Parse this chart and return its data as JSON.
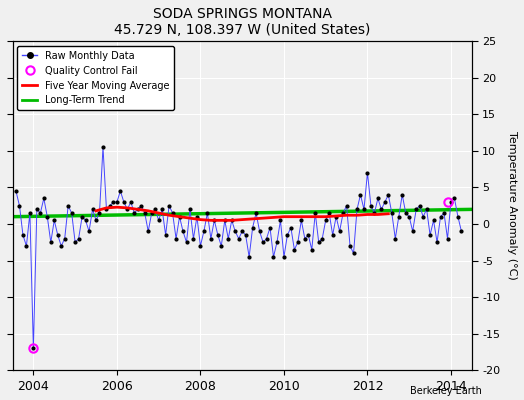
{
  "title": "SODA SPRINGS MONTANA",
  "subtitle": "45.729 N, 108.397 W (United States)",
  "ylabel_right": "Temperature Anomaly (°C)",
  "watermark": "Berkeley Earth",
  "ylim": [
    -20,
    25
  ],
  "xlim": [
    2003.5,
    2014.5
  ],
  "yticks": [
    -20,
    -15,
    -10,
    -5,
    0,
    5,
    10,
    15,
    20,
    25
  ],
  "xticks": [
    2004,
    2006,
    2008,
    2010,
    2012,
    2014
  ],
  "bg_color": "#f0f0f0",
  "plot_bg_color": "#f0f0f0",
  "raw_data": {
    "times": [
      2003.583,
      2003.667,
      2003.75,
      2003.833,
      2003.917,
      2004.0,
      2004.083,
      2004.167,
      2004.25,
      2004.333,
      2004.417,
      2004.5,
      2004.583,
      2004.667,
      2004.75,
      2004.833,
      2004.917,
      2005.0,
      2005.083,
      2005.167,
      2005.25,
      2005.333,
      2005.417,
      2005.5,
      2005.583,
      2005.667,
      2005.75,
      2005.833,
      2005.917,
      2006.0,
      2006.083,
      2006.167,
      2006.25,
      2006.333,
      2006.417,
      2006.5,
      2006.583,
      2006.667,
      2006.75,
      2006.833,
      2006.917,
      2007.0,
      2007.083,
      2007.167,
      2007.25,
      2007.333,
      2007.417,
      2007.5,
      2007.583,
      2007.667,
      2007.75,
      2007.833,
      2007.917,
      2008.0,
      2008.083,
      2008.167,
      2008.25,
      2008.333,
      2008.417,
      2008.5,
      2008.583,
      2008.667,
      2008.75,
      2008.833,
      2008.917,
      2009.0,
      2009.083,
      2009.167,
      2009.25,
      2009.333,
      2009.417,
      2009.5,
      2009.583,
      2009.667,
      2009.75,
      2009.833,
      2009.917,
      2010.0,
      2010.083,
      2010.167,
      2010.25,
      2010.333,
      2010.417,
      2010.5,
      2010.583,
      2010.667,
      2010.75,
      2010.833,
      2010.917,
      2011.0,
      2011.083,
      2011.167,
      2011.25,
      2011.333,
      2011.417,
      2011.5,
      2011.583,
      2011.667,
      2011.75,
      2011.833,
      2011.917,
      2012.0,
      2012.083,
      2012.167,
      2012.25,
      2012.333,
      2012.417,
      2012.5,
      2012.583,
      2012.667,
      2012.75,
      2012.833,
      2012.917,
      2013.0,
      2013.083,
      2013.167,
      2013.25,
      2013.333,
      2013.417,
      2013.5,
      2013.583,
      2013.667,
      2013.75,
      2013.833,
      2013.917,
      2014.0,
      2014.083,
      2014.167,
      2014.25
    ],
    "values": [
      4.5,
      2.5,
      -1.5,
      -3.0,
      1.5,
      -17.0,
      2.0,
      1.5,
      3.5,
      1.0,
      -2.5,
      0.5,
      -1.5,
      -3.0,
      -2.0,
      2.5,
      1.5,
      -2.5,
      -2.0,
      1.0,
      0.5,
      -1.0,
      2.0,
      0.5,
      1.5,
      10.5,
      2.0,
      2.5,
      3.0,
      3.0,
      4.5,
      3.0,
      2.0,
      3.0,
      1.5,
      2.0,
      2.5,
      1.5,
      -1.0,
      1.5,
      2.0,
      0.5,
      2.0,
      -1.5,
      2.5,
      1.5,
      -2.0,
      1.0,
      -1.0,
      -2.5,
      2.0,
      -2.0,
      1.0,
      -3.0,
      -1.0,
      1.5,
      -2.0,
      0.5,
      -1.5,
      -3.0,
      0.5,
      -2.0,
      0.5,
      -1.0,
      -2.0,
      -1.0,
      -1.5,
      -4.5,
      -0.5,
      1.5,
      -1.0,
      -2.5,
      -2.0,
      -0.5,
      -4.5,
      -2.5,
      0.5,
      -4.5,
      -1.5,
      -0.5,
      -3.5,
      -2.5,
      0.5,
      -2.0,
      -1.5,
      -3.5,
      1.5,
      -2.5,
      -2.0,
      0.5,
      1.5,
      -1.5,
      1.0,
      -1.0,
      1.5,
      2.5,
      -3.0,
      -4.0,
      2.0,
      4.0,
      2.0,
      7.0,
      2.5,
      1.5,
      3.5,
      2.0,
      3.0,
      4.0,
      1.5,
      -2.0,
      1.0,
      4.0,
      1.5,
      1.0,
      -1.0,
      2.0,
      2.5,
      1.0,
      2.0,
      -1.5,
      0.5,
      -2.5,
      1.0,
      1.5,
      -2.0,
      3.0,
      3.5,
      1.0,
      -1.0
    ]
  },
  "qc_fail_times": [
    2004.0,
    2013.917
  ],
  "qc_fail_values": [
    -17.0,
    3.0
  ],
  "moving_avg": {
    "times": [
      2005.5,
      2005.75,
      2006.0,
      2006.25,
      2006.5,
      2006.75,
      2007.0,
      2007.25,
      2007.5,
      2007.75,
      2008.0,
      2008.25,
      2008.5,
      2008.75,
      2009.0,
      2009.25,
      2009.5,
      2009.75,
      2010.0,
      2010.25,
      2010.5,
      2010.75,
      2011.0,
      2011.25,
      2011.5,
      2011.75,
      2012.0,
      2012.25,
      2012.5
    ],
    "values": [
      1.8,
      2.2,
      2.3,
      2.2,
      2.0,
      1.8,
      1.5,
      1.2,
      1.0,
      0.8,
      0.6,
      0.5,
      0.5,
      0.5,
      0.6,
      0.7,
      0.8,
      0.9,
      1.0,
      1.0,
      1.0,
      1.0,
      1.0,
      1.1,
      1.2,
      1.2,
      1.3,
      1.3,
      1.4
    ]
  },
  "long_term_trend": {
    "times": [
      2003.5,
      2014.5
    ],
    "values": [
      1.0,
      2.0
    ]
  },
  "line_color": "#4444ff",
  "dot_color": "#000000",
  "qc_color": "#ff00ff",
  "moving_avg_color": "#ff0000",
  "trend_color": "#00bb00"
}
